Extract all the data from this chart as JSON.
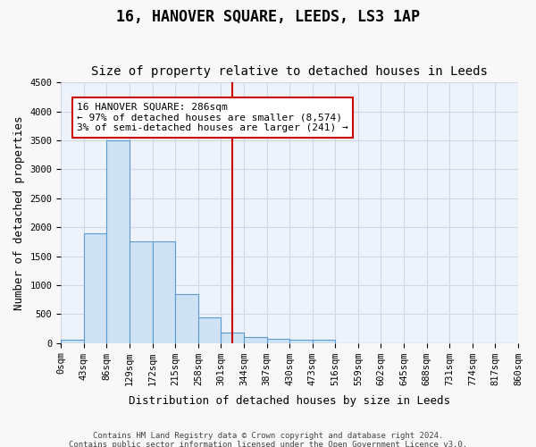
{
  "title": "16, HANOVER SQUARE, LEEDS, LS3 1AP",
  "subtitle": "Size of property relative to detached houses in Leeds",
  "xlabel": "Distribution of detached houses by size in Leeds",
  "ylabel": "Number of detached properties",
  "footnote1": "Contains HM Land Registry data © Crown copyright and database right 2024.",
  "footnote2": "Contains public sector information licensed under the Open Government Licence v3.0.",
  "bin_labels": [
    "0sqm",
    "43sqm",
    "86sqm",
    "129sqm",
    "172sqm",
    "215sqm",
    "258sqm",
    "301sqm",
    "344sqm",
    "387sqm",
    "430sqm",
    "473sqm",
    "516sqm",
    "559sqm",
    "602sqm",
    "645sqm",
    "688sqm",
    "731sqm",
    "774sqm",
    "817sqm",
    "860sqm"
  ],
  "bar_values": [
    50,
    1900,
    3500,
    1750,
    1750,
    850,
    450,
    175,
    100,
    75,
    50,
    50,
    0,
    0,
    0,
    0,
    0,
    0,
    0,
    0
  ],
  "bar_color": "#cfe2f3",
  "bar_edge_color": "#5b9bd5",
  "grid_color": "#d0d8e8",
  "background_color": "#eef2fb",
  "vline_x": 7,
  "vline_color": "#cc0000",
  "annotation_text": "16 HANOVER SQUARE: 286sqm\n← 97% of detached houses are smaller (8,574)\n3% of semi-detached houses are larger (241) →",
  "annotation_box_color": "#ffffff",
  "annotation_box_edge": "#cc0000",
  "ylim": [
    0,
    4500
  ],
  "yticks": [
    0,
    500,
    1000,
    1500,
    2000,
    2500,
    3000,
    3500,
    4000,
    4500
  ],
  "title_fontsize": 12,
  "subtitle_fontsize": 10,
  "annotation_fontsize": 8,
  "tick_fontsize": 7.5,
  "ylabel_fontsize": 9,
  "xlabel_fontsize": 9
}
